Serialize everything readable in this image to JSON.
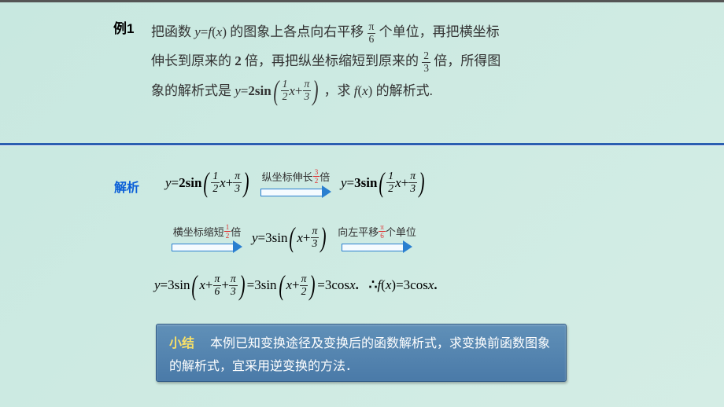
{
  "example_label": "例1",
  "problem": {
    "p1a": "把函数 ",
    "p1b": "的图象上各点向右平移",
    "p1c": "个单位，再把横坐标",
    "p2a": "伸长到原来的 ",
    "p2b": "2",
    "p2c": " 倍，再把纵坐标缩短到原来的",
    "p2d": "倍，所得图",
    "p3a": "象的解析式是 ",
    "p3c": "，求 ",
    "p3d": "的解析式."
  },
  "fractions": {
    "pi_over_6_num": "π",
    "pi_over_6_den": "6",
    "two_thirds_num": "2",
    "two_thirds_den": "3",
    "half_num": "1",
    "half_den": "2",
    "pi_over_3_num": "π",
    "pi_over_3_den": "3",
    "three_halves_num": "3",
    "three_halves_den": "2",
    "pi_over_2_num": "π",
    "pi_over_2_den": "2"
  },
  "solution_label": "解析",
  "step1": {
    "label_a": "纵坐标伸长 ",
    "label_b": " 倍"
  },
  "step2": {
    "label_a": "横坐标缩短 ",
    "label_b": " 倍"
  },
  "step3": {
    "label_a": "向左平移 ",
    "label_b": " 个单位"
  },
  "expr": {
    "y_eq": "y",
    "f_x": "f",
    "x": "x",
    "two_sin": "2sin",
    "three_sin": "3sin",
    "plus": "+",
    "eq": "=",
    "three_cos_x": "3cos ",
    "dot": ".",
    "therefore": "∴",
    "open": "(",
    "close": ")"
  },
  "summary": {
    "label": "小结",
    "text": "　本例已知变换途径及变换后的函数解析式，求变换前函数图象的解析式，宜采用逆变换的方法．"
  },
  "colors": {
    "accent_blue": "#0a5fd8",
    "divider": "#2a5fb0",
    "arrow": "#2a7fd0",
    "red": "#e03030",
    "summary_bg": "#4a7aa8",
    "summary_label": "#f8e068"
  }
}
